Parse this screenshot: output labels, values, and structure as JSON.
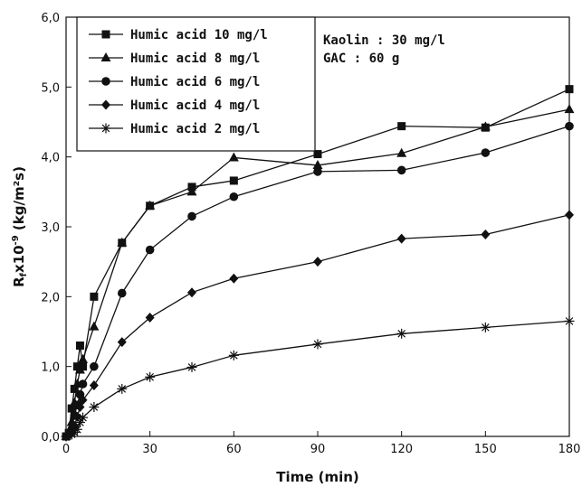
{
  "chart_data": {
    "type": "line",
    "xlabel": "Time (min)",
    "ylabel_main": "R",
    "ylabel_sub": "f",
    "ylabel_rest": "x10",
    "ylabel_exp": "-9",
    "ylabel_units": " (kg/m²s)",
    "xlim": [
      0,
      180
    ],
    "ylim": [
      0,
      6
    ],
    "xticks": [
      "0",
      "30",
      "60",
      "90",
      "120",
      "150",
      "180"
    ],
    "yticks": [
      "0,0",
      "1,0",
      "2,0",
      "3,0",
      "4,0",
      "5,0",
      "6,0"
    ],
    "grid": false,
    "legend_position": "top-left",
    "annotations": [
      "Kaolin : 30 mg/l",
      "GAC : 60 g"
    ],
    "series": [
      {
        "name": "Humic acid 10 mg/l",
        "marker": "square",
        "x": [
          0,
          1,
          2,
          3,
          4,
          5,
          6,
          10,
          20,
          30,
          45,
          60,
          90,
          120,
          150,
          180
        ],
        "y": [
          0,
          0.05,
          0.4,
          0.68,
          1.0,
          1.3,
          1.0,
          2.0,
          2.77,
          3.3,
          3.57,
          3.66,
          4.04,
          4.44,
          4.42,
          4.97
        ]
      },
      {
        "name": "Humic acid 8 mg/l",
        "marker": "triangle",
        "x": [
          0,
          1,
          2,
          3,
          4,
          5,
          6,
          10,
          20,
          30,
          45,
          60,
          90,
          120,
          150,
          180
        ],
        "y": [
          0,
          0.05,
          0.2,
          0.48,
          0.75,
          0.95,
          1.1,
          1.57,
          2.77,
          3.3,
          3.5,
          3.99,
          3.88,
          4.05,
          4.43,
          4.68
        ]
      },
      {
        "name": "Humic acid 6 mg/l",
        "marker": "circle",
        "x": [
          0,
          1,
          2,
          3,
          4,
          5,
          6,
          10,
          20,
          30,
          45,
          60,
          90,
          120,
          150,
          180
        ],
        "y": [
          0,
          0.03,
          0.1,
          0.3,
          0.45,
          0.6,
          0.75,
          1.0,
          2.05,
          2.67,
          3.15,
          3.43,
          3.79,
          3.81,
          4.06,
          4.44
        ]
      },
      {
        "name": "Humic acid 4 mg/l",
        "marker": "diamond",
        "x": [
          0,
          1,
          2,
          3,
          4,
          5,
          6,
          10,
          20,
          30,
          45,
          60,
          90,
          120,
          150,
          180
        ],
        "y": [
          0,
          0.02,
          0.06,
          0.15,
          0.28,
          0.42,
          0.52,
          0.73,
          1.35,
          1.7,
          2.06,
          2.26,
          2.5,
          2.83,
          2.89,
          3.17
        ]
      },
      {
        "name": "Humic acid 2 mg/l",
        "marker": "asterisk",
        "x": [
          0,
          1,
          2,
          3,
          4,
          5,
          6,
          10,
          20,
          30,
          45,
          60,
          90,
          120,
          150,
          180
        ],
        "y": [
          0,
          0.01,
          0.03,
          0.06,
          0.1,
          0.2,
          0.27,
          0.42,
          0.68,
          0.85,
          0.99,
          1.16,
          1.32,
          1.47,
          1.56,
          1.65
        ]
      }
    ]
  }
}
